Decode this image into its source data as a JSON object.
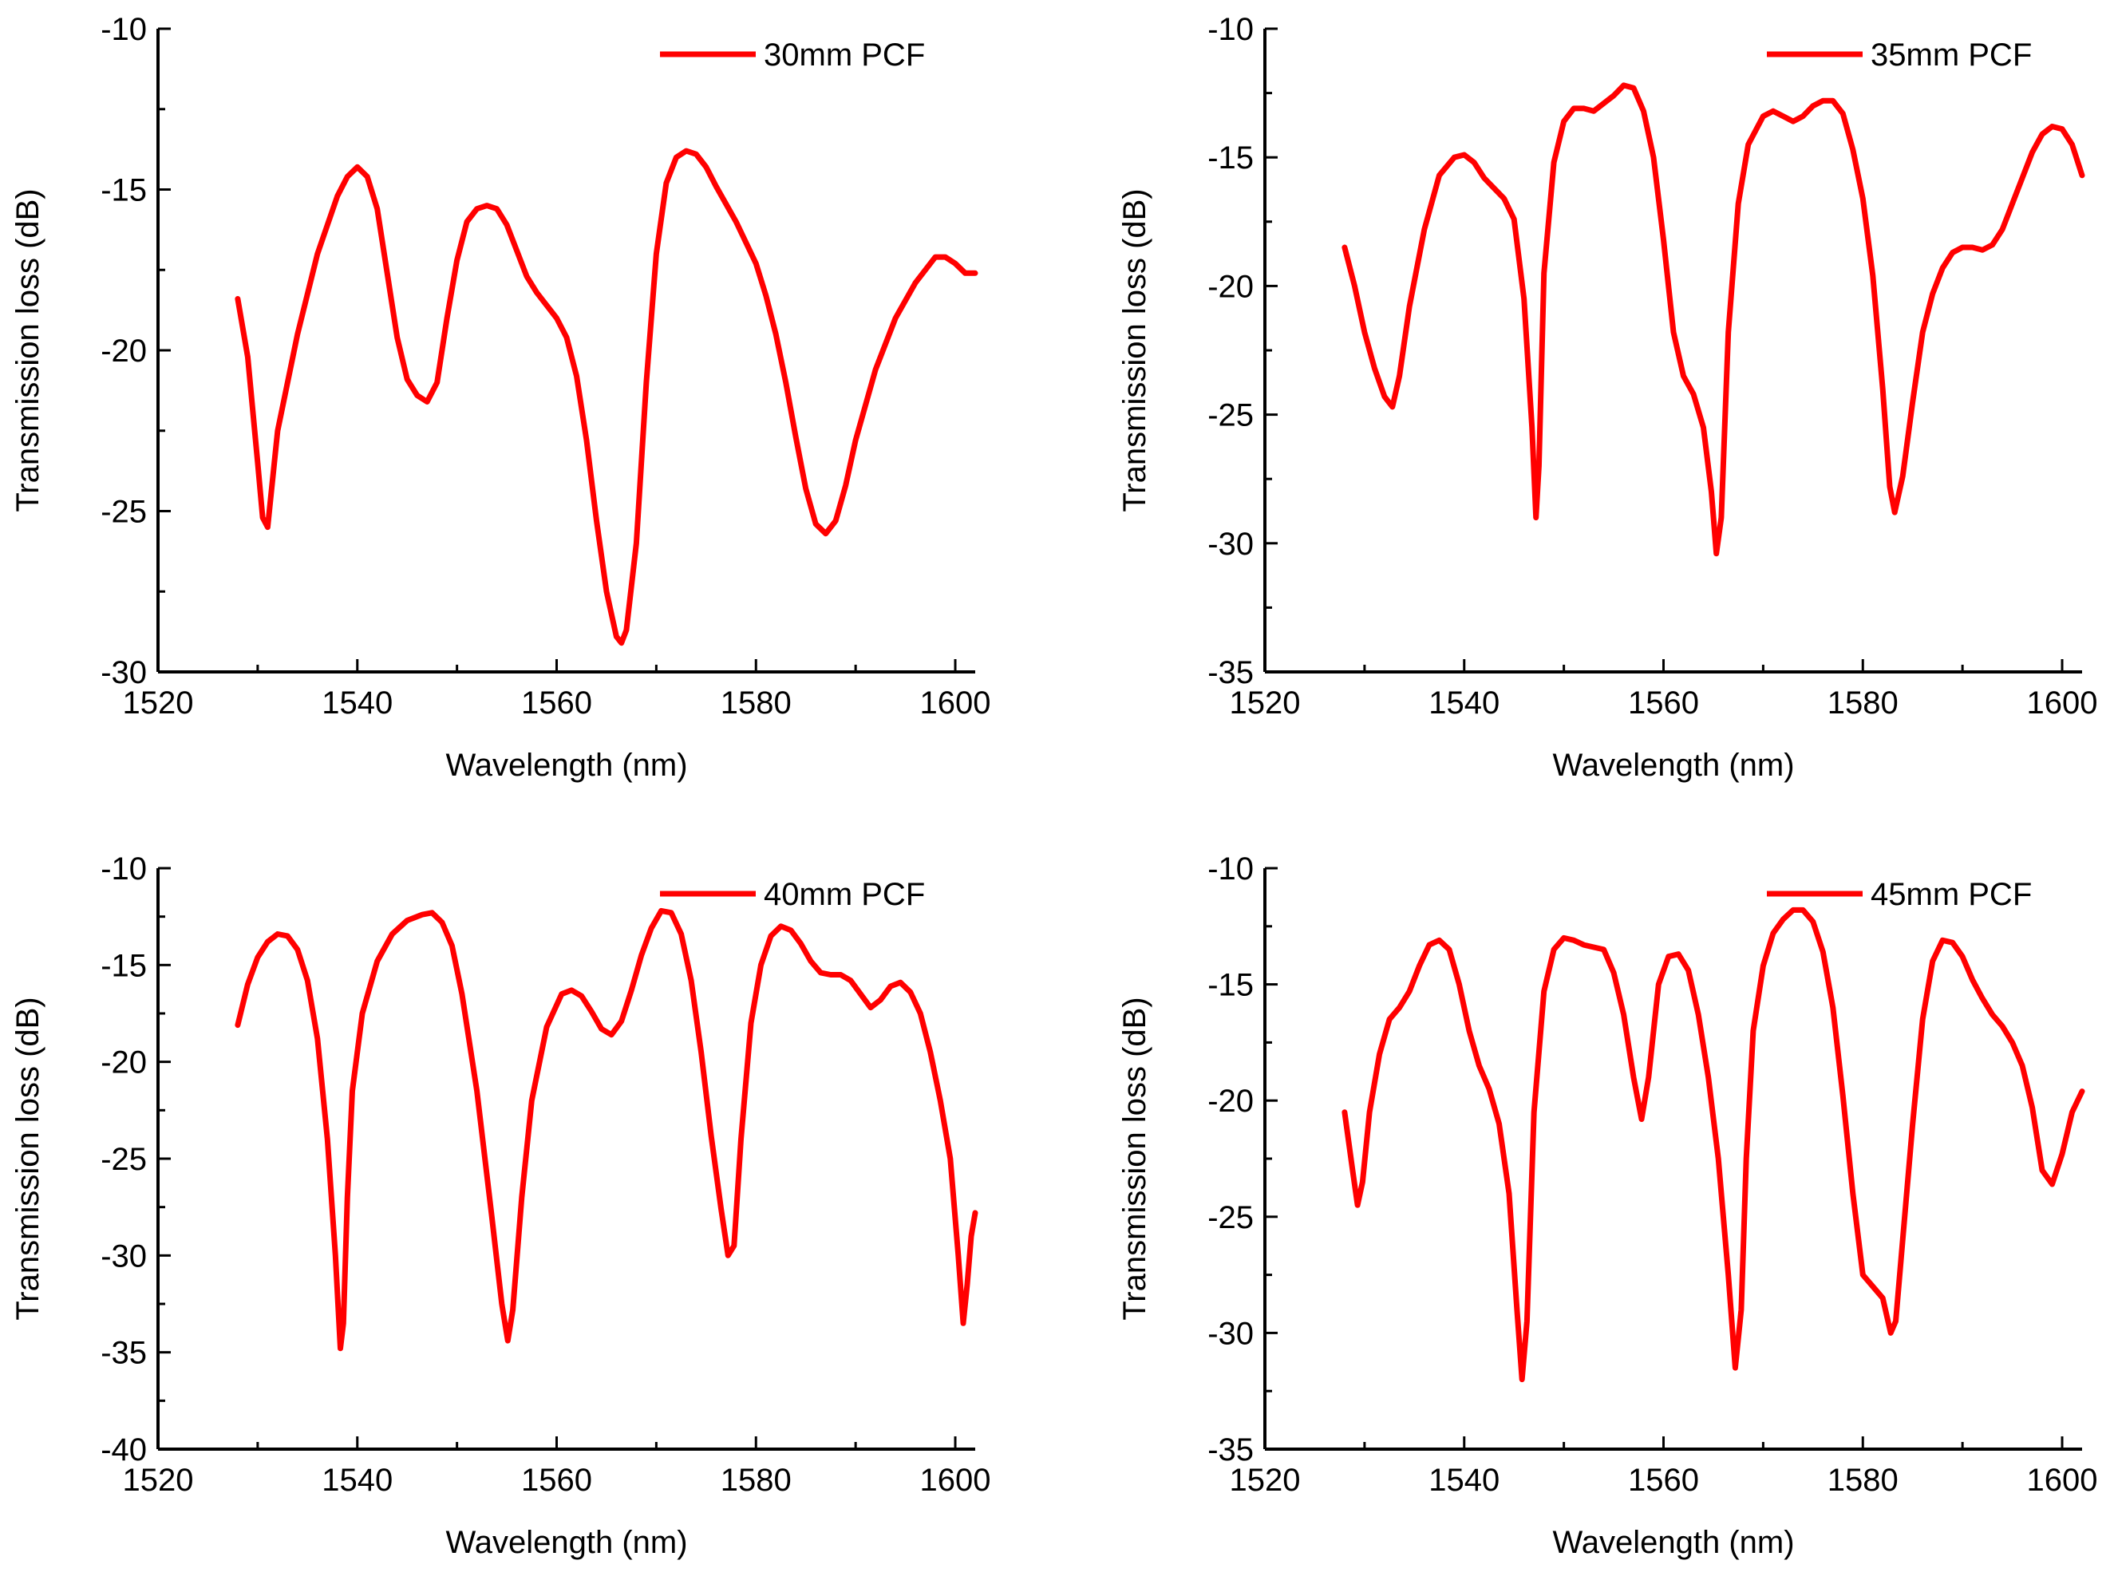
{
  "figure": {
    "colors": {
      "series": "#ff0000",
      "axis": "#000000",
      "background": "#ffffff"
    }
  },
  "chart_data": [
    {
      "type": "line",
      "title": "",
      "xlabel": "Wavelength (nm)",
      "ylabel": "Transmission loss (dB)",
      "xlim": [
        1520,
        1602
      ],
      "ylim": [
        -30,
        -10
      ],
      "xticks": [
        "1520",
        "1540",
        "1560",
        "1580",
        "1600"
      ],
      "yticks": [
        "-10",
        "-15",
        "-20",
        "-25",
        "-30"
      ],
      "grid": false,
      "legend": {
        "label": "30mm PCF",
        "position": "top-right"
      },
      "series": [
        {
          "name": "30mm PCF",
          "color": "#ff0000",
          "x": [
            1528,
            1529,
            1530,
            1530.5,
            1531,
            1532,
            1534,
            1536,
            1538,
            1539,
            1540,
            1541,
            1542,
            1543,
            1544,
            1545,
            1546,
            1547,
            1548,
            1549,
            1550,
            1551,
            1552,
            1553,
            1554,
            1555,
            1556,
            1557,
            1558,
            1559,
            1560,
            1561,
            1562,
            1563,
            1564,
            1565,
            1566,
            1566.5,
            1567,
            1568,
            1569,
            1570,
            1571,
            1572,
            1573,
            1574,
            1575,
            1576,
            1578,
            1580,
            1581,
            1582,
            1583,
            1584,
            1585,
            1586,
            1587,
            1588,
            1589,
            1590,
            1592,
            1594,
            1596,
            1598,
            1599,
            1600,
            1601,
            1602
          ],
          "y": [
            -18.4,
            -20.2,
            -23.5,
            -25.2,
            -25.5,
            -22.5,
            -19.5,
            -17.0,
            -15.2,
            -14.6,
            -14.3,
            -14.6,
            -15.6,
            -17.6,
            -19.6,
            -20.9,
            -21.4,
            -21.6,
            -21.0,
            -19.0,
            -17.2,
            -16.0,
            -15.6,
            -15.5,
            -15.6,
            -16.1,
            -16.9,
            -17.7,
            -18.2,
            -18.6,
            -19.0,
            -19.6,
            -20.8,
            -22.8,
            -25.3,
            -27.5,
            -28.9,
            -29.1,
            -28.7,
            -26.0,
            -21.0,
            -17.0,
            -14.8,
            -14.0,
            -13.8,
            -13.9,
            -14.3,
            -14.9,
            -16.0,
            -17.3,
            -18.3,
            -19.5,
            -21.0,
            -22.7,
            -24.3,
            -25.4,
            -25.7,
            -25.3,
            -24.2,
            -22.8,
            -20.6,
            -19.0,
            -17.9,
            -17.1,
            -17.1,
            -17.3,
            -17.6,
            -17.6
          ]
        }
      ]
    },
    {
      "type": "line",
      "title": "",
      "xlabel": "Wavelength (nm)",
      "ylabel": "Transmission loss (dB)",
      "xlim": [
        1520,
        1602
      ],
      "ylim": [
        -35,
        -10
      ],
      "xticks": [
        "1520",
        "1540",
        "1560",
        "1580",
        "1600"
      ],
      "yticks": [
        "-10",
        "-15",
        "-20",
        "-25",
        "-30",
        "-35"
      ],
      "grid": false,
      "legend": {
        "label": "35mm PCF",
        "position": "top-right"
      },
      "series": [
        {
          "name": "35mm PCF",
          "color": "#ff0000",
          "x": [
            1528,
            1529,
            1530,
            1531,
            1532,
            1532.8,
            1533.5,
            1534.5,
            1536,
            1537.5,
            1539,
            1540,
            1541,
            1542,
            1543,
            1544,
            1545,
            1546,
            1546.8,
            1547.2,
            1547.5,
            1548,
            1549,
            1550,
            1551,
            1552,
            1553,
            1554,
            1555,
            1556,
            1557,
            1558,
            1559,
            1560,
            1561,
            1562,
            1563,
            1564,
            1564.8,
            1565.3,
            1565.8,
            1566.5,
            1567.5,
            1568.5,
            1570,
            1571,
            1572,
            1573,
            1574,
            1575,
            1576,
            1577,
            1578,
            1579,
            1580,
            1581,
            1582,
            1582.7,
            1583.2,
            1584,
            1585,
            1586,
            1587,
            1588,
            1589,
            1590,
            1591,
            1592,
            1593,
            1594,
            1595,
            1596,
            1597,
            1598,
            1599,
            1600,
            1601,
            1602
          ],
          "y": [
            -18.5,
            -20.0,
            -21.8,
            -23.2,
            -24.3,
            -24.7,
            -23.5,
            -20.8,
            -17.8,
            -15.7,
            -15.0,
            -14.9,
            -15.2,
            -15.8,
            -16.2,
            -16.6,
            -17.4,
            -20.5,
            -25.5,
            -29.0,
            -27.0,
            -19.5,
            -15.2,
            -13.6,
            -13.1,
            -13.1,
            -13.2,
            -12.9,
            -12.6,
            -12.2,
            -12.3,
            -13.2,
            -15.0,
            -18.2,
            -21.8,
            -23.5,
            -24.2,
            -25.5,
            -28.0,
            -30.4,
            -29.0,
            -21.8,
            -16.8,
            -14.5,
            -13.4,
            -13.2,
            -13.4,
            -13.6,
            -13.4,
            -13.0,
            -12.8,
            -12.8,
            -13.3,
            -14.7,
            -16.6,
            -19.6,
            -24.0,
            -27.8,
            -28.8,
            -27.4,
            -24.5,
            -21.8,
            -20.3,
            -19.3,
            -18.7,
            -18.5,
            -18.5,
            -18.6,
            -18.4,
            -17.8,
            -16.8,
            -15.8,
            -14.8,
            -14.1,
            -13.8,
            -13.9,
            -14.5,
            -15.7
          ]
        }
      ]
    },
    {
      "type": "line",
      "title": "",
      "xlabel": "Wavelength (nm)",
      "ylabel": "Transmission loss (dB)",
      "xlim": [
        1520,
        1602
      ],
      "ylim": [
        -40,
        -10
      ],
      "xticks": [
        "1520",
        "1540",
        "1560",
        "1580",
        "1600"
      ],
      "yticks": [
        "-10",
        "-15",
        "-20",
        "-25",
        "-30",
        "-35",
        "-40"
      ],
      "grid": false,
      "legend": {
        "label": "40mm PCF",
        "position": "top-right"
      },
      "series": [
        {
          "name": "40mm PCF",
          "color": "#ff0000",
          "x": [
            1528,
            1529,
            1530,
            1531,
            1532,
            1533,
            1534,
            1535,
            1536,
            1537,
            1537.8,
            1538.3,
            1538.6,
            1539,
            1539.5,
            1540.5,
            1542,
            1543.5,
            1545,
            1546.5,
            1547.5,
            1548.5,
            1549.5,
            1550.5,
            1552,
            1553.5,
            1554.5,
            1555.1,
            1555.6,
            1556.5,
            1557.5,
            1559,
            1560.5,
            1561.5,
            1562.5,
            1563.5,
            1564.5,
            1565.5,
            1566.5,
            1567.5,
            1568.5,
            1569.5,
            1570.5,
            1571.5,
            1572.5,
            1573.5,
            1574.5,
            1575.5,
            1576.5,
            1577.2,
            1577.8,
            1578.5,
            1579.5,
            1580.5,
            1581.5,
            1582.5,
            1583.5,
            1584.5,
            1585.5,
            1586.5,
            1587.5,
            1588.5,
            1589.5,
            1590.5,
            1591.5,
            1592.5,
            1593.5,
            1594.5,
            1595.5,
            1596.5,
            1597.5,
            1598.5,
            1599.5,
            1600.3,
            1600.8,
            1601.2,
            1601.6,
            1602
          ],
          "y": [
            -18.1,
            -16.0,
            -14.6,
            -13.8,
            -13.4,
            -13.5,
            -14.2,
            -15.8,
            -18.8,
            -24.0,
            -30.0,
            -34.8,
            -33.5,
            -27.0,
            -21.5,
            -17.5,
            -14.8,
            -13.4,
            -12.7,
            -12.4,
            -12.3,
            -12.8,
            -14.0,
            -16.5,
            -21.5,
            -28.0,
            -32.5,
            -34.4,
            -32.8,
            -27.0,
            -22.0,
            -18.2,
            -16.5,
            -16.3,
            -16.6,
            -17.4,
            -18.3,
            -18.6,
            -17.9,
            -16.3,
            -14.5,
            -13.1,
            -12.2,
            -12.3,
            -13.4,
            -15.8,
            -19.5,
            -23.8,
            -27.6,
            -30.0,
            -29.5,
            -24.0,
            -18.0,
            -15.0,
            -13.5,
            -13.0,
            -13.2,
            -13.9,
            -14.8,
            -15.4,
            -15.5,
            -15.5,
            -15.8,
            -16.5,
            -17.2,
            -16.8,
            -16.1,
            -15.9,
            -16.4,
            -17.5,
            -19.5,
            -22.0,
            -25.0,
            -30.0,
            -33.5,
            -31.5,
            -29.0,
            -27.8
          ]
        }
      ]
    },
    {
      "type": "line",
      "title": "",
      "xlabel": "Wavelength (nm)",
      "ylabel": "Transmission loss (dB)",
      "xlim": [
        1520,
        1602
      ],
      "ylim": [
        -35,
        -10
      ],
      "xticks": [
        "1520",
        "1540",
        "1560",
        "1580",
        "1600"
      ],
      "yticks": [
        "-10",
        "-15",
        "-20",
        "-25",
        "-30",
        "-35"
      ],
      "grid": false,
      "legend": {
        "label": "45mm PCF",
        "position": "top-right"
      },
      "series": [
        {
          "name": "45mm PCF",
          "color": "#ff0000",
          "x": [
            1528,
            1528.8,
            1529.3,
            1529.8,
            1530.5,
            1531.5,
            1532.5,
            1533.5,
            1534.5,
            1535.5,
            1536.5,
            1537.5,
            1538.5,
            1539.5,
            1540.5,
            1541.5,
            1542.5,
            1543.5,
            1544.5,
            1545.3,
            1545.8,
            1546.3,
            1547,
            1548,
            1549,
            1550,
            1551,
            1552,
            1553,
            1554,
            1555,
            1556,
            1557,
            1557.8,
            1558.5,
            1559.5,
            1560.5,
            1561.5,
            1562.5,
            1563.5,
            1564.5,
            1565.5,
            1566.5,
            1567.2,
            1567.8,
            1568.3,
            1569,
            1570,
            1571,
            1572,
            1573,
            1574,
            1575,
            1576,
            1577,
            1578,
            1579,
            1580,
            1581,
            1582,
            1582.8,
            1583.3,
            1584,
            1585,
            1586,
            1587,
            1588,
            1589,
            1590,
            1591,
            1592,
            1593,
            1594,
            1595,
            1596,
            1597,
            1598,
            1599,
            1600,
            1601,
            1602
          ],
          "y": [
            -20.5,
            -23.0,
            -24.5,
            -23.5,
            -20.5,
            -18.0,
            -16.5,
            -16.0,
            -15.3,
            -14.2,
            -13.3,
            -13.1,
            -13.5,
            -15.0,
            -17.0,
            -18.5,
            -19.5,
            -21.0,
            -24.0,
            -29.0,
            -32.0,
            -29.5,
            -20.5,
            -15.3,
            -13.5,
            -13.0,
            -13.1,
            -13.3,
            -13.4,
            -13.5,
            -14.5,
            -16.3,
            -19.0,
            -20.8,
            -19.0,
            -15.0,
            -13.8,
            -13.7,
            -14.4,
            -16.3,
            -19.0,
            -22.5,
            -27.5,
            -31.5,
            -29.0,
            -22.5,
            -17.0,
            -14.2,
            -12.8,
            -12.2,
            -11.8,
            -11.8,
            -12.3,
            -13.6,
            -16.0,
            -19.8,
            -24.0,
            -27.5,
            -28.0,
            -28.5,
            -30.0,
            -29.5,
            -26.0,
            -21.0,
            -16.5,
            -14.0,
            -13.1,
            -13.2,
            -13.8,
            -14.8,
            -15.6,
            -16.3,
            -16.8,
            -17.5,
            -18.5,
            -20.3,
            -23.0,
            -23.6,
            -22.3,
            -20.5,
            -19.6
          ]
        }
      ]
    }
  ]
}
